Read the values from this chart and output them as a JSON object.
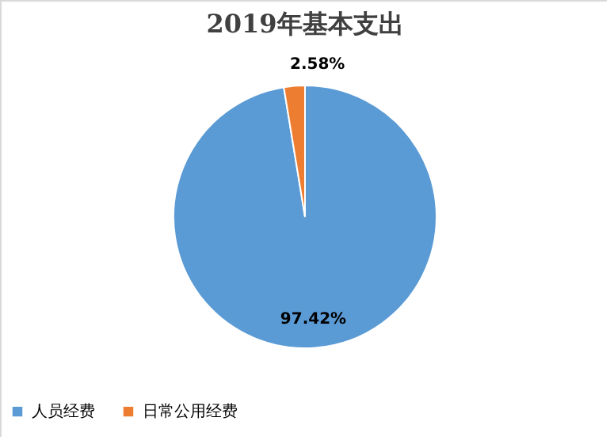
{
  "chart_data": {
    "type": "pie",
    "title": "2019年基本支出",
    "categories": [
      "人员经费",
      "日常公用经费"
    ],
    "values": [
      97.42,
      2.58
    ],
    "colors": [
      "#5b9bd5",
      "#ed7d31"
    ],
    "value_labels": [
      "97.42%",
      "2.58%"
    ],
    "legend": "bottom"
  }
}
